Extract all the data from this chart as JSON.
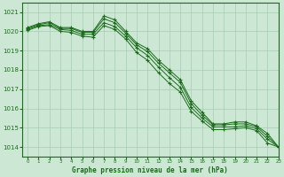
{
  "xlabel": "Graphe pression niveau de la mer (hPa)",
  "ylim": [
    1013.5,
    1021.5
  ],
  "xlim": [
    -0.5,
    23
  ],
  "yticks": [
    1014,
    1015,
    1016,
    1017,
    1018,
    1019,
    1020,
    1021
  ],
  "xticks": [
    0,
    1,
    2,
    3,
    4,
    5,
    6,
    7,
    8,
    9,
    10,
    11,
    12,
    13,
    14,
    15,
    16,
    17,
    18,
    19,
    20,
    21,
    22,
    23
  ],
  "background_color": "#cce8d4",
  "grid_color": "#a8ccb4",
  "line_color": "#1a6b1a",
  "line1": [
    1020.2,
    1020.4,
    1020.5,
    1020.2,
    1020.2,
    1020.0,
    1020.0,
    1020.8,
    1020.6,
    1020.0,
    1019.4,
    1019.1,
    1018.5,
    1018.0,
    1017.5,
    1016.4,
    1015.8,
    1015.2,
    1015.2,
    1015.3,
    1015.3,
    1015.1,
    1014.7,
    1014.0
  ],
  "line2": [
    1020.15,
    1020.35,
    1020.45,
    1020.15,
    1020.15,
    1019.95,
    1019.95,
    1020.65,
    1020.45,
    1019.9,
    1019.3,
    1018.95,
    1018.35,
    1017.85,
    1017.35,
    1016.25,
    1015.65,
    1015.15,
    1015.15,
    1015.2,
    1015.2,
    1015.05,
    1014.55,
    1014.0
  ],
  "line3": [
    1020.1,
    1020.3,
    1020.35,
    1020.1,
    1020.05,
    1019.85,
    1019.85,
    1020.45,
    1020.25,
    1019.75,
    1019.15,
    1018.75,
    1018.15,
    1017.6,
    1017.1,
    1016.05,
    1015.5,
    1015.05,
    1015.05,
    1015.05,
    1015.1,
    1014.95,
    1014.4,
    1014.0
  ],
  "line4": [
    1020.05,
    1020.25,
    1020.3,
    1020.0,
    1019.95,
    1019.75,
    1019.7,
    1020.3,
    1020.1,
    1019.6,
    1018.9,
    1018.5,
    1017.85,
    1017.3,
    1016.85,
    1015.85,
    1015.35,
    1014.9,
    1014.9,
    1014.95,
    1015.0,
    1014.85,
    1014.2,
    1014.0
  ]
}
